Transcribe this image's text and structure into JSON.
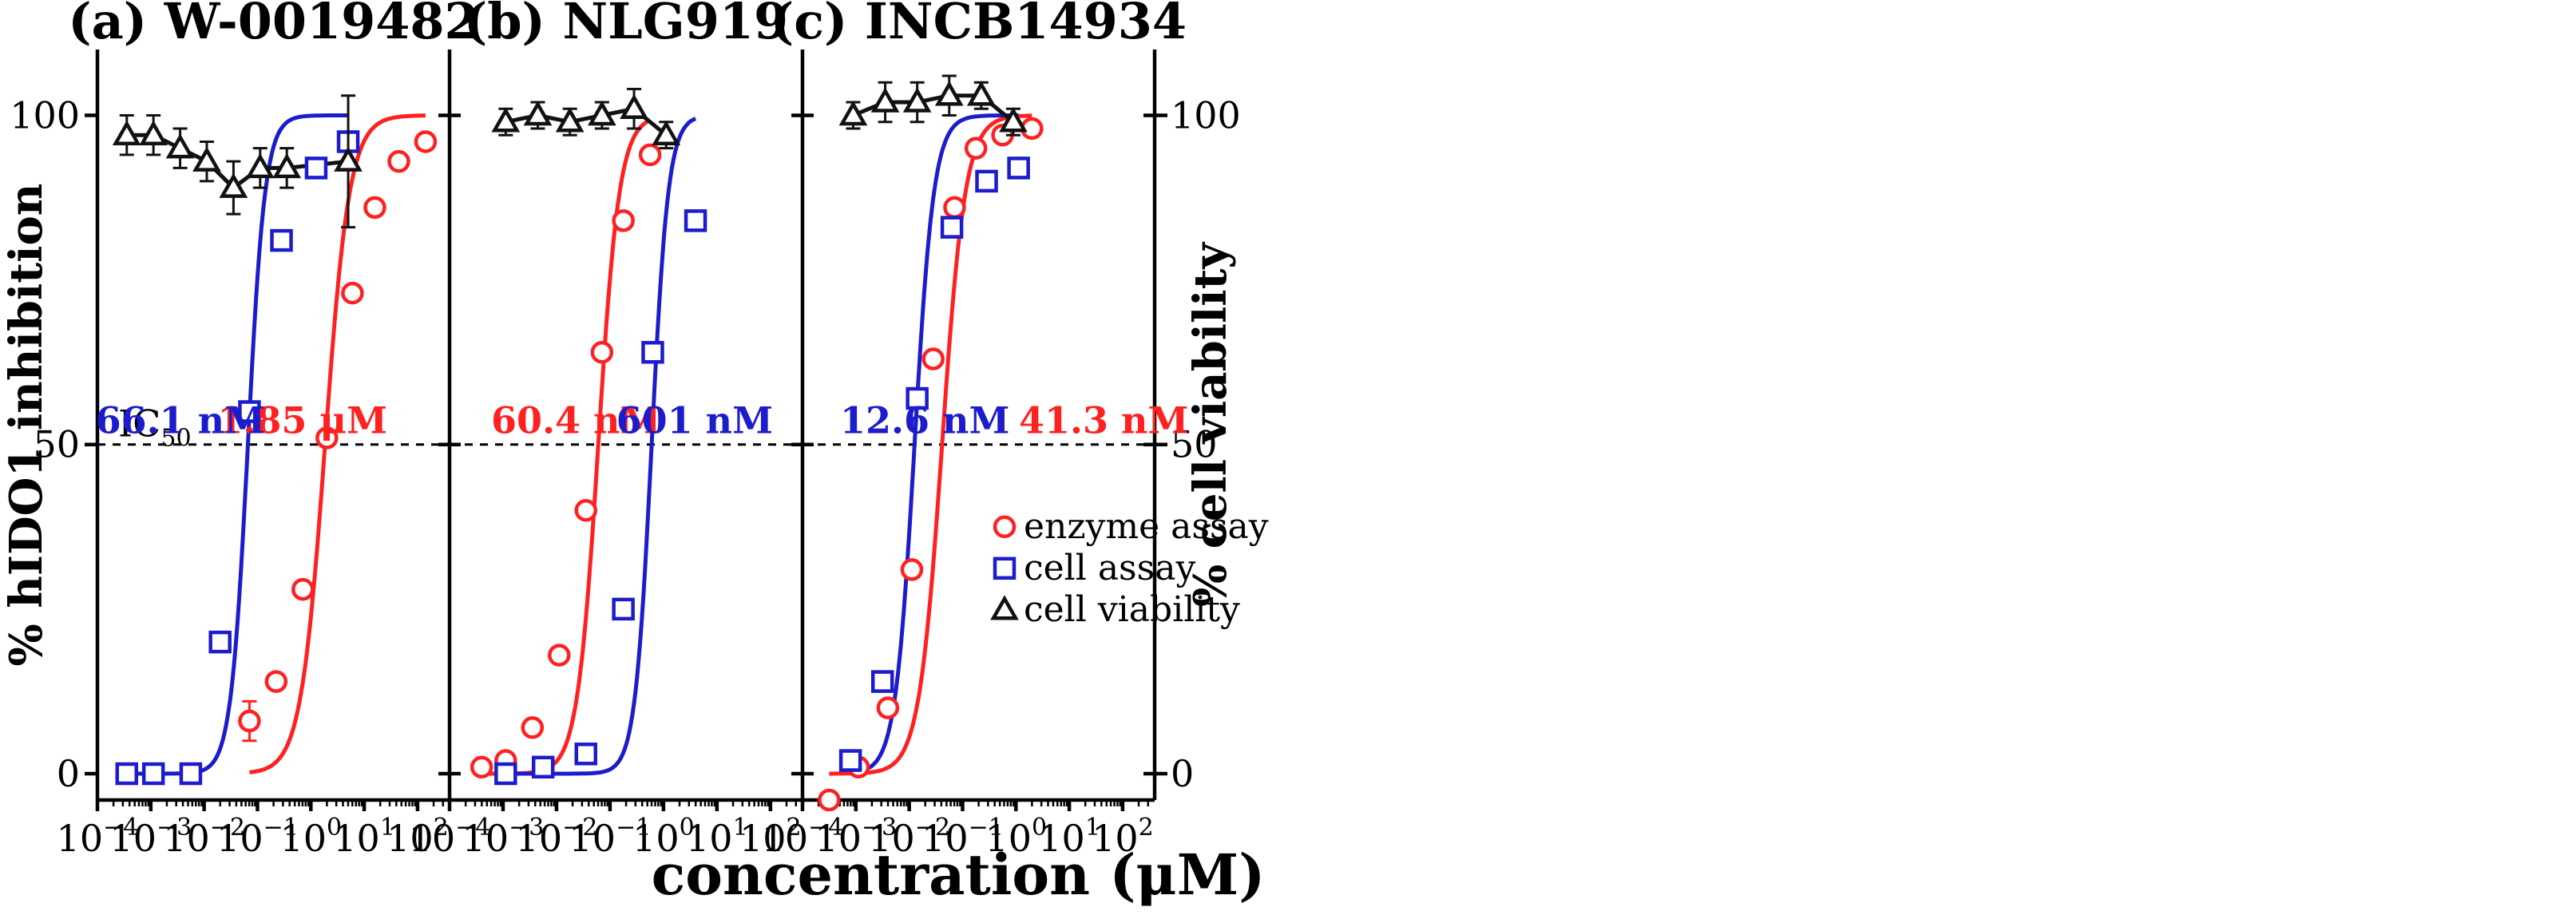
{
  "colors": {
    "enzyme": "#ff2020",
    "cell": "#1c1ccc",
    "viability": "#111111",
    "axis": "#000000"
  },
  "chart_data": {
    "type": "scatter",
    "xlabel": "concentration (μM)",
    "ylabel_left": "% hIDO1 inhibition",
    "ylabel_right": "% cell viability",
    "x_scale": "log10",
    "x_ticks": [
      -4,
      -3,
      -2,
      -1,
      0,
      1,
      2
    ],
    "x_tick_labels": [
      "10-4",
      "10-3",
      "10-2",
      "10-1",
      "100",
      "101",
      "102"
    ],
    "y_ticks": [
      0,
      50,
      100
    ],
    "ylim": [
      -4,
      110
    ],
    "ic50_line_y": 50,
    "ic50_label": "IC50",
    "legend": {
      "position": "bottom-right",
      "entries": [
        {
          "key": "enzyme",
          "label": "enzyme assay",
          "marker": "circle"
        },
        {
          "key": "cell",
          "label": "cell assay",
          "marker": "square"
        },
        {
          "key": "viability",
          "label": "cell viability",
          "marker": "triangle"
        }
      ]
    },
    "panels": [
      {
        "title": "(a) W-0019482",
        "xlim": [
          -4,
          2.6
        ],
        "series": [
          {
            "key": "enzyme",
            "name": "enzyme assay",
            "ic50_label": "1.85 μM",
            "ic50_logx": 0.267,
            "hill": 0.95,
            "x": [
              -1.15,
              -0.65,
              -0.15,
              0.3,
              0.78,
              1.2,
              1.65,
              2.15
            ],
            "y": [
              8,
              14,
              28,
              51,
              73,
              86,
              93,
              96
            ],
            "yerr": [
              3,
              0,
              0,
              0,
              0,
              0,
              0,
              0
            ]
          },
          {
            "key": "cell",
            "name": "cell assay",
            "ic50_label": "66.1 nM",
            "ic50_logx": -1.18,
            "hill": 1.35,
            "x": [
              -3.45,
              -2.95,
              -2.25,
              -1.7,
              -1.15,
              -0.55,
              0.1,
              0.7
            ],
            "y": [
              0,
              0,
              0,
              20,
              55,
              81,
              92,
              96
            ]
          },
          {
            "key": "viability",
            "name": "cell viability",
            "x": [
              -3.45,
              -2.95,
              -2.45,
              -1.95,
              -1.45,
              -0.95,
              -0.45,
              0.7
            ],
            "y": [
              97,
              97,
              95,
              93,
              89,
              92,
              92,
              93
            ],
            "yerr": [
              3,
              3,
              3,
              3,
              4,
              3,
              3,
              10
            ]
          }
        ]
      },
      {
        "title": "(b) NLG919",
        "xlim": [
          -4,
          2.6
        ],
        "series": [
          {
            "key": "enzyme",
            "name": "enzyme assay",
            "ic50_label": "60.4 nM",
            "ic50_logx": -1.219,
            "hill": 1.1,
            "x": [
              -3.4,
              -2.95,
              -2.45,
              -1.95,
              -1.45,
              -1.15,
              -0.75,
              -0.25
            ],
            "y": [
              1,
              2,
              7,
              18,
              40,
              64,
              84,
              94
            ]
          },
          {
            "key": "cell",
            "name": "cell assay",
            "ic50_label": "601 nM",
            "ic50_logx": -0.221,
            "hill": 1.4,
            "x": [
              -2.95,
              -2.25,
              -1.45,
              -0.75,
              -0.2,
              0.6
            ],
            "y": [
              0,
              1,
              3,
              25,
              64,
              84
            ]
          },
          {
            "key": "viability",
            "name": "cell viability",
            "x": [
              -2.95,
              -2.35,
              -1.75,
              -1.15,
              -0.55,
              0.05
            ],
            "y": [
              99,
              100,
              99,
              100,
              101,
              97
            ],
            "yerr": [
              2,
              2,
              2,
              2,
              3,
              2
            ]
          }
        ]
      },
      {
        "title": "(c) INCB14934",
        "xlim": [
          -4,
          2.6
        ],
        "series": [
          {
            "key": "enzyme",
            "name": "enzyme assay",
            "ic50_label": "41.3 nM",
            "ic50_logx": -1.384,
            "hill": 1.0,
            "x": [
              -3.5,
              -2.95,
              -2.4,
              -1.95,
              -1.55,
              -1.15,
              -0.75,
              -0.25,
              0.3
            ],
            "y": [
              -4,
              1,
              10,
              31,
              63,
              86,
              95,
              97,
              98
            ]
          },
          {
            "key": "cell",
            "name": "cell assay",
            "ic50_label": "12.6 nM",
            "ic50_logx": -1.9,
            "hill": 1.2,
            "x": [
              -3.1,
              -2.5,
              -1.85,
              -1.2,
              -0.55,
              0.05
            ],
            "y": [
              2,
              14,
              57,
              83,
              90,
              92
            ]
          },
          {
            "key": "viability",
            "name": "cell viability",
            "x": [
              -3.05,
              -2.45,
              -1.85,
              -1.25,
              -0.65,
              -0.05
            ],
            "y": [
              100,
              102,
              102,
              103,
              103,
              99
            ],
            "yerr": [
              2,
              3,
              3,
              3,
              2,
              2
            ]
          }
        ]
      }
    ]
  }
}
